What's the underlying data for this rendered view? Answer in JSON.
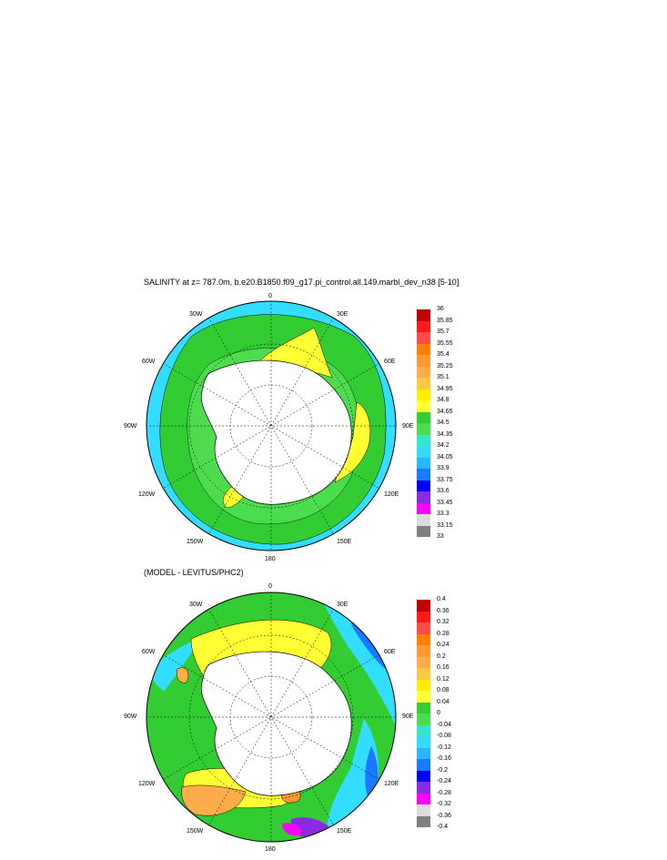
{
  "panel1": {
    "title": "SALINITY at z= 787.0m, b.e20.B1850.f09_g17.pi_control.all.149.marbl_dev_n38 [5-10]",
    "lon_labels": {
      "top": "0",
      "top_left": "30W",
      "top_right": "30E",
      "upper_left": "60W",
      "upper_right": "60E",
      "left": "90W",
      "right": "90E",
      "lower_left": "120W",
      "lower_right": "120E",
      "bottom_left": "150W",
      "bottom_right": "150E",
      "bottom": "180"
    },
    "legend": {
      "ticks": [
        "36",
        "35.85",
        "35.7",
        "35.55",
        "35.4",
        "35.25",
        "35.1",
        "34.95",
        "34.8",
        "34.65",
        "34.5",
        "34.35",
        "34.2",
        "34.05",
        "33.9",
        "33.75",
        "33.6",
        "33.45",
        "33.3",
        "33.15",
        "33"
      ],
      "colors": [
        "#c00000",
        "#ff1a1a",
        "#ff4a4a",
        "#ff8000",
        "#ff9933",
        "#ffad4a",
        "#ffc840",
        "#ffee00",
        "#ffff33",
        "#33cc33",
        "#4ddc4d",
        "#33e6cc",
        "#33ddff",
        "#29b7ff",
        "#1a7aff",
        "#0000ff",
        "#8a2be2",
        "#ff00ff",
        "#dcdcdc",
        "#808080"
      ]
    }
  },
  "panel2": {
    "title": "(MODEL - LEVITUS/PHC2)",
    "lon_labels": {
      "top": "0",
      "top_left": "30W",
      "top_right": "30E",
      "upper_left": "60W",
      "upper_right": "60E",
      "left": "90W",
      "right": "90E",
      "lower_left": "120W",
      "lower_right": "120E",
      "bottom_left": "150W",
      "bottom_right": "150E",
      "bottom": "180"
    },
    "legend": {
      "ticks": [
        "0.4",
        "0.36",
        "0.32",
        "0.28",
        "0.24",
        "0.2",
        "0.16",
        "0.12",
        "0.08",
        "0.04",
        "0",
        "-0.04",
        "-0.08",
        "-0.12",
        "-0.16",
        "-0.2",
        "-0.24",
        "-0.28",
        "-0.32",
        "-0.36",
        "-0.4"
      ],
      "colors": [
        "#c00000",
        "#ff1a1a",
        "#ff4a4a",
        "#ff8000",
        "#ff9933",
        "#ffad4a",
        "#ffc840",
        "#ffee00",
        "#ffff33",
        "#33cc33",
        "#4ddc4d",
        "#33e6cc",
        "#33ddff",
        "#29b7ff",
        "#1a7aff",
        "#0000ff",
        "#8a2be2",
        "#ff00ff",
        "#dcdcdc",
        "#808080"
      ]
    }
  },
  "colors": {
    "ocean_main": "#33cc33",
    "ocean_outer": "#33ddff",
    "highlight": "#ffff33",
    "land": "#ffffff",
    "deep_blue": "#1a7aff"
  }
}
